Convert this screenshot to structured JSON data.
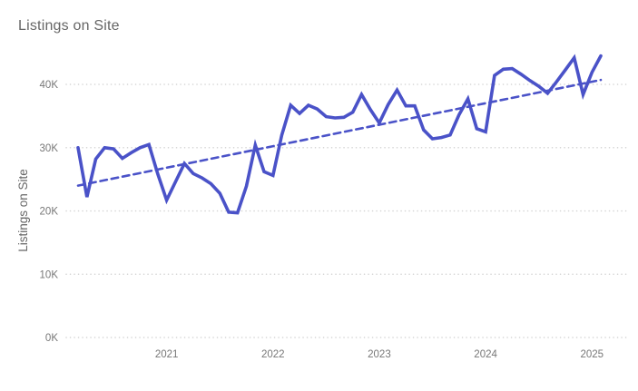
{
  "header": {
    "title": "Listings on Site"
  },
  "colors": {
    "background": "#ffffff",
    "line": "#4a52c8",
    "trend_line": "#4a52c8",
    "gridline": "#d2d2d2",
    "title_text": "#666666",
    "axis_text": "#777777",
    "axis_title_text": "#666666"
  },
  "chart_data": {
    "type": "line",
    "title": "Listings on Site",
    "ylabel": "Listings on Site",
    "xlabel": "",
    "legend_position": "none",
    "grid": "horizontal-dotted",
    "ylim": [
      0,
      45000
    ],
    "y_ticks": [
      {
        "label": "0K",
        "value": 0
      },
      {
        "label": "10K",
        "value": 10
      },
      {
        "label": "20K",
        "value": 20
      },
      {
        "label": "30K",
        "value": 30
      },
      {
        "label": "40K",
        "value": 40
      }
    ],
    "x_year_ticks": [
      "2021",
      "2022",
      "2023",
      "2024",
      "2025"
    ],
    "x_start": "2020-03",
    "x_end": "2025-02",
    "x_cadence": "monthly",
    "unit": "thousands of listings",
    "series": [
      {
        "name": "Listings on Site",
        "style": "solid",
        "color": "#4a52c8",
        "values_thousands": [
          30.0,
          22.2,
          28.2,
          30.0,
          29.8,
          28.3,
          29.2,
          30.0,
          30.5,
          25.8,
          21.7,
          24.6,
          27.5,
          25.9,
          25.2,
          24.3,
          22.8,
          19.8,
          19.7,
          23.9,
          30.4,
          26.2,
          25.6,
          32.0,
          36.7,
          35.4,
          36.7,
          36.1,
          34.9,
          34.7,
          34.8,
          35.6,
          38.4,
          36.0,
          33.9,
          36.8,
          39.1,
          36.6,
          36.6,
          32.8,
          31.4,
          31.6,
          32.0,
          35.2,
          37.7,
          33.0,
          32.5,
          41.4,
          42.4,
          42.5,
          41.6,
          40.6,
          39.7,
          38.6,
          40.4,
          42.3,
          44.2,
          38.4,
          41.9,
          44.5
        ]
      },
      {
        "name": "Trend",
        "style": "dashed",
        "color": "#4a52c8",
        "trend_start_thousands": 24.0,
        "trend_end_thousands": 40.7
      }
    ]
  }
}
